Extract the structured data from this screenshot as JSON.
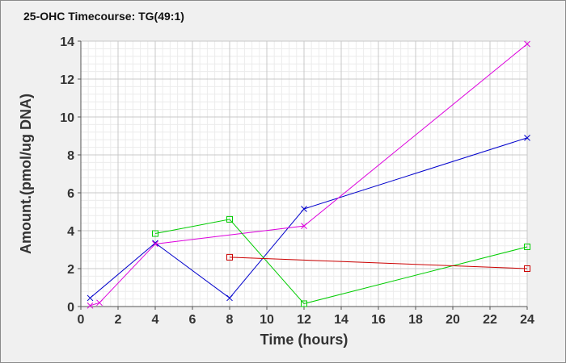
{
  "chart_data": {
    "type": "line",
    "title": "25-OHC Timecourse: TG(49:1)",
    "xlabel": "Time (hours)",
    "ylabel": "Amount.(pmol/ug DNA)",
    "xlim": [
      0,
      24
    ],
    "ylim": [
      0,
      14
    ],
    "xticks": [
      "0",
      "2",
      "4",
      "6",
      "8",
      "10",
      "12",
      "14",
      "16",
      "18",
      "20",
      "22",
      "24"
    ],
    "yticks": [
      "0",
      "2",
      "4",
      "6",
      "8",
      "10",
      "12",
      "14"
    ],
    "grid": true,
    "minor_grid": true,
    "series": [
      {
        "color": "#0000cc",
        "marker": "x",
        "points": [
          [
            0.5,
            0.45
          ],
          [
            4,
            3.35
          ],
          [
            8,
            0.45
          ],
          [
            12,
            5.15
          ],
          [
            24,
            8.9
          ]
        ]
      },
      {
        "color": "#dd00dd",
        "marker": "x",
        "points": [
          [
            0.5,
            0.05
          ],
          [
            1,
            0.2
          ],
          [
            4,
            3.3
          ],
          [
            12,
            4.25
          ],
          [
            24,
            13.85
          ]
        ]
      },
      {
        "color": "#00cc00",
        "marker": "square",
        "points": [
          [
            4,
            3.85
          ],
          [
            8,
            4.6
          ],
          [
            12,
            0.15
          ],
          [
            24,
            3.15
          ]
        ]
      },
      {
        "color": "#cc0000",
        "marker": "square",
        "points": [
          [
            8,
            2.6
          ],
          [
            24,
            2.0
          ]
        ]
      }
    ]
  }
}
